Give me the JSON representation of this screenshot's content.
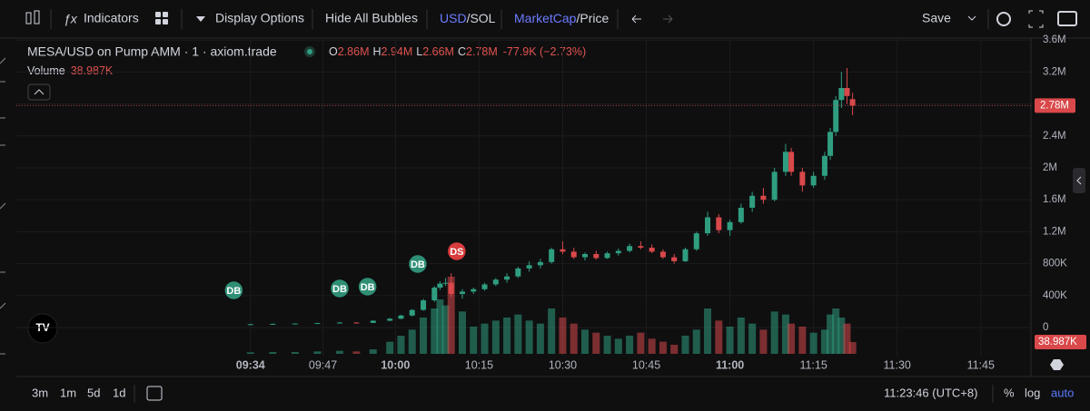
{
  "toolbar": {
    "indicators": "Indicators",
    "display_options": "Display Options",
    "hide_bubbles": "Hide All Bubbles",
    "currency_a": "USD",
    "currency_b": "/SOL",
    "mode_a": "MarketCap",
    "mode_b": "/Price",
    "save": "Save"
  },
  "legend": {
    "title": "MESA/USD on Pump AMM · 1 · axiom.trade",
    "o_key": "O",
    "open": {
      "value": 2860000,
      "label": "2.86M"
    },
    "h_key": "H",
    "high": {
      "value": 2940000,
      "label": "2.94M"
    },
    "l_key": "L",
    "low": {
      "value": 2660000,
      "label": "2.66M"
    },
    "c_key": "C",
    "close": {
      "value": 2780000,
      "label": "2.78M"
    },
    "change": "-77.9K (−2.73%)",
    "volume_key": "Volume",
    "volume": {
      "value": 38987,
      "label": "38.987K"
    }
  },
  "chart_data": {
    "type": "candlestick",
    "up_color": "#2f9e80",
    "down_color": "#d9484a",
    "grid": true,
    "x": [
      "09:34",
      "09:38",
      "09:42",
      "09:46",
      "09:50",
      "09:53",
      "09:56",
      "09:59",
      "10:01",
      "10:03",
      "10:05",
      "10:07",
      "10:08",
      "10:09",
      "10:10",
      "10:12",
      "10:14",
      "10:16",
      "10:18",
      "10:20",
      "10:22",
      "10:24",
      "10:26",
      "10:28",
      "10:30",
      "10:32",
      "10:34",
      "10:36",
      "10:38",
      "10:40",
      "10:42",
      "10:44",
      "10:46",
      "10:48",
      "10:50",
      "10:52",
      "10:54",
      "10:56",
      "10:58",
      "11:00",
      "11:02",
      "11:04",
      "11:06",
      "11:08",
      "11:10",
      "11:11",
      "11:13",
      "11:15",
      "11:17",
      "11:18",
      "11:19",
      "11:20",
      "11:21",
      "11:22"
    ],
    "open": [
      40000,
      42000,
      46000,
      50000,
      55000,
      62000,
      58000,
      85000,
      110000,
      150000,
      220000,
      340000,
      500000,
      550000,
      560000,
      420000,
      450000,
      480000,
      540000,
      600000,
      640000,
      740000,
      780000,
      820000,
      980000,
      950000,
      880000,
      920000,
      870000,
      930000,
      960000,
      1020000,
      1000000,
      950000,
      880000,
      830000,
      980000,
      1180000,
      1380000,
      1220000,
      1320000,
      1500000,
      1650000,
      1600000,
      1950000,
      2200000,
      1950000,
      1780000,
      1900000,
      2150000,
      2450000,
      2850000,
      3000000,
      2860000
    ],
    "high": [
      45000,
      48000,
      52000,
      58000,
      70000,
      68000,
      90000,
      120000,
      160000,
      230000,
      360000,
      520000,
      580000,
      620000,
      680000,
      480000,
      500000,
      560000,
      620000,
      680000,
      760000,
      830000,
      860000,
      1000000,
      1080000,
      1000000,
      940000,
      960000,
      950000,
      990000,
      1050000,
      1080000,
      1040000,
      980000,
      920000,
      1000000,
      1200000,
      1450000,
      1420000,
      1350000,
      1550000,
      1700000,
      1750000,
      2000000,
      2300000,
      2250000,
      2000000,
      1950000,
      2200000,
      2500000,
      2900000,
      3200000,
      3250000,
      2940000
    ],
    "low": [
      38000,
      40000,
      44000,
      48000,
      52000,
      55000,
      56000,
      80000,
      105000,
      140000,
      210000,
      320000,
      470000,
      520000,
      380000,
      360000,
      420000,
      460000,
      520000,
      560000,
      620000,
      700000,
      740000,
      800000,
      920000,
      860000,
      840000,
      850000,
      860000,
      900000,
      940000,
      980000,
      930000,
      860000,
      800000,
      820000,
      960000,
      1150000,
      1180000,
      1150000,
      1300000,
      1450000,
      1550000,
      1580000,
      1900000,
      1900000,
      1700000,
      1750000,
      1850000,
      2100000,
      2400000,
      2750000,
      2800000,
      2660000
    ],
    "close": [
      42000,
      46000,
      50000,
      55000,
      62000,
      58000,
      85000,
      110000,
      150000,
      220000,
      340000,
      500000,
      550000,
      560000,
      420000,
      450000,
      480000,
      540000,
      600000,
      640000,
      740000,
      780000,
      820000,
      980000,
      950000,
      880000,
      920000,
      870000,
      930000,
      960000,
      1020000,
      1000000,
      950000,
      880000,
      830000,
      980000,
      1180000,
      1380000,
      1220000,
      1320000,
      1500000,
      1650000,
      1600000,
      1950000,
      2200000,
      1950000,
      1780000,
      1900000,
      2150000,
      2450000,
      2850000,
      3000000,
      2900000,
      2780000
    ],
    "volume": [
      5000,
      6000,
      6000,
      8000,
      10000,
      8000,
      15000,
      40000,
      60000,
      80000,
      120000,
      150000,
      180000,
      160000,
      255000,
      140000,
      90000,
      100000,
      110000,
      120000,
      130000,
      110000,
      100000,
      150000,
      120000,
      100000,
      80000,
      70000,
      60000,
      50000,
      60000,
      70000,
      50000,
      40000,
      30000,
      60000,
      80000,
      150000,
      110000,
      90000,
      120000,
      100000,
      80000,
      140000,
      130000,
      100000,
      90000,
      70000,
      80000,
      130000,
      150000,
      120000,
      100000,
      38987
    ],
    "xlim": [
      "08:52",
      "11:54"
    ],
    "xticks": [
      "09:34",
      "09:47",
      "10:00",
      "10:15",
      "10:30",
      "10:45",
      "11:00",
      "11:15",
      "11:30",
      "11:45"
    ],
    "ylim": [
      -364000,
      3625000
    ],
    "yticks": [
      0,
      {
        "value": 400000,
        "label": "400K"
      },
      {
        "value": 800000,
        "label": "800K"
      },
      {
        "value": 1200000,
        "label": "1.2M"
      },
      {
        "value": 1600000,
        "label": "1.6M"
      },
      {
        "value": 2000000,
        "label": "2M"
      },
      {
        "value": 2400000,
        "label": "2.4M"
      },
      {
        "value": 2800000,
        "label": "2.8M"
      },
      {
        "value": 3200000,
        "label": "3.2M"
      },
      {
        "value": 3600000,
        "label": "3.6M"
      }
    ],
    "bubbles": [
      {
        "x": "09:31",
        "value": 466000,
        "label": "DB",
        "color": "#2f8f75"
      },
      {
        "x": "09:50",
        "value": 489000,
        "label": "DB",
        "color": "#2f8f75"
      },
      {
        "x": "09:55",
        "value": 511000,
        "label": "DB",
        "color": "#2f8f75"
      },
      {
        "x": "10:04",
        "value": 795000,
        "label": "DB",
        "color": "#2f8f75"
      },
      {
        "x": "10:11",
        "value": 955000,
        "label": "DS",
        "color": "#d93c3c"
      }
    ]
  },
  "bottom": {
    "r3m": "3m",
    "r1m": "1m",
    "r5d": "5d",
    "r1d": "1d",
    "clock": "11:23:46 (UTC+8)",
    "percent": "%",
    "log": "log",
    "auto": "auto"
  }
}
